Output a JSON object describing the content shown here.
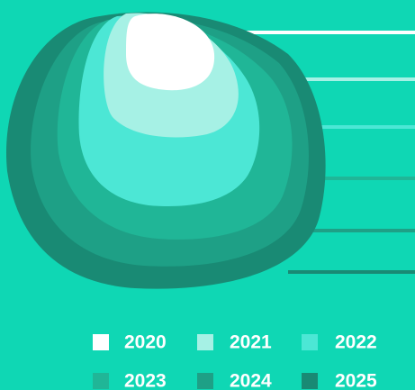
{
  "legend": [
    {
      "label": "2020",
      "color": "#ffffff"
    },
    {
      "label": "2021",
      "color": "#a6f1e5"
    },
    {
      "label": "2022",
      "color": "#4ce7d5"
    },
    {
      "label": "2023",
      "color": "#20b697"
    },
    {
      "label": "2024",
      "color": "#1ea086"
    },
    {
      "label": "2025",
      "color": "#198a74"
    }
  ]
}
